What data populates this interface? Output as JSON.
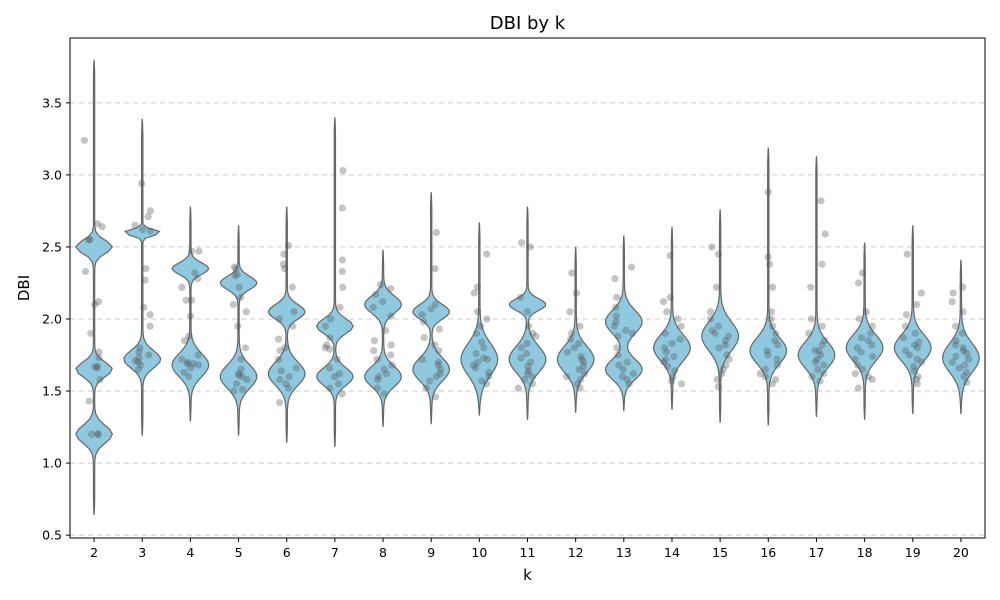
{
  "chart_data": {
    "type": "violin",
    "title": "DBI by k",
    "xlabel": "k",
    "ylabel": "DBI",
    "categories": [
      "2",
      "3",
      "4",
      "5",
      "6",
      "7",
      "8",
      "9",
      "10",
      "11",
      "12",
      "13",
      "14",
      "15",
      "16",
      "17",
      "18",
      "19",
      "20"
    ],
    "ylim": [
      0.48,
      3.95
    ],
    "yticks": [
      "0.5",
      "1.0",
      "1.5",
      "2.0",
      "2.5",
      "3.0",
      "3.5"
    ],
    "grid": "y-dashed",
    "colors": {
      "violin_fill": "#8ec9e0",
      "violin_edge": "#666666",
      "points": "#555555",
      "grid": "#cccccc"
    },
    "violins": [
      {
        "k": "2",
        "min": 0.64,
        "max": 3.8,
        "modes": [
          [
            1.2,
            0.06
          ],
          [
            1.65,
            0.05
          ],
          [
            2.5,
            0.045
          ]
        ]
      },
      {
        "k": "3",
        "min": 1.19,
        "max": 3.39,
        "modes": [
          [
            1.72,
            0.06
          ],
          [
            2.6,
            0.02
          ]
        ]
      },
      {
        "k": "4",
        "min": 1.29,
        "max": 2.78,
        "modes": [
          [
            1.68,
            0.08
          ],
          [
            2.35,
            0.04
          ]
        ]
      },
      {
        "k": "5",
        "min": 1.19,
        "max": 2.65,
        "modes": [
          [
            1.6,
            0.08
          ],
          [
            2.25,
            0.045
          ]
        ]
      },
      {
        "k": "6",
        "min": 1.14,
        "max": 2.78,
        "modes": [
          [
            1.62,
            0.08
          ],
          [
            2.05,
            0.05
          ]
        ]
      },
      {
        "k": "7",
        "min": 1.11,
        "max": 3.4,
        "modes": [
          [
            1.6,
            0.06
          ],
          [
            1.95,
            0.05
          ]
        ]
      },
      {
        "k": "8",
        "min": 1.25,
        "max": 2.48,
        "modes": [
          [
            1.6,
            0.07
          ],
          [
            2.1,
            0.06
          ]
        ]
      },
      {
        "k": "9",
        "min": 1.27,
        "max": 2.88,
        "modes": [
          [
            1.65,
            0.08
          ],
          [
            2.05,
            0.05
          ]
        ]
      },
      {
        "k": "10",
        "min": 1.33,
        "max": 2.67,
        "modes": [
          [
            1.72,
            0.11
          ]
        ]
      },
      {
        "k": "11",
        "min": 1.3,
        "max": 2.78,
        "modes": [
          [
            1.72,
            0.09
          ],
          [
            2.1,
            0.04
          ]
        ]
      },
      {
        "k": "12",
        "min": 1.35,
        "max": 2.5,
        "modes": [
          [
            1.72,
            0.09
          ]
        ]
      },
      {
        "k": "13",
        "min": 1.36,
        "max": 2.58,
        "modes": [
          [
            1.65,
            0.07
          ],
          [
            1.98,
            0.08
          ]
        ]
      },
      {
        "k": "14",
        "min": 1.37,
        "max": 2.64,
        "modes": [
          [
            1.8,
            0.09
          ]
        ]
      },
      {
        "k": "15",
        "min": 1.28,
        "max": 2.76,
        "modes": [
          [
            1.88,
            0.1
          ]
        ]
      },
      {
        "k": "16",
        "min": 1.26,
        "max": 3.19,
        "modes": [
          [
            1.78,
            0.09
          ]
        ]
      },
      {
        "k": "17",
        "min": 1.32,
        "max": 3.13,
        "modes": [
          [
            1.75,
            0.09
          ]
        ]
      },
      {
        "k": "18",
        "min": 1.3,
        "max": 2.53,
        "modes": [
          [
            1.8,
            0.09
          ]
        ]
      },
      {
        "k": "19",
        "min": 1.34,
        "max": 2.65,
        "modes": [
          [
            1.8,
            0.09
          ]
        ]
      },
      {
        "k": "20",
        "min": 1.34,
        "max": 2.41,
        "modes": [
          [
            1.73,
            0.1
          ]
        ]
      }
    ],
    "points": {
      "2": [
        3.24,
        2.64,
        2.55,
        2.55,
        2.12,
        2.1,
        1.9,
        1.77,
        1.73,
        1.67,
        1.67,
        1.66,
        1.58,
        1.43,
        1.2,
        1.2,
        1.2,
        2.33,
        2.66
      ],
      "3": [
        2.94,
        2.75,
        2.71,
        2.65,
        2.62,
        2.61,
        2.35,
        2.27,
        2.08,
        2.03,
        1.95,
        1.8,
        1.77,
        1.75,
        1.73,
        1.71,
        1.7,
        1.68,
        1.65
      ],
      "4": [
        2.47,
        2.47,
        2.32,
        2.28,
        2.22,
        2.13,
        2.13,
        2.02,
        1.88,
        1.85,
        1.75,
        1.72,
        1.7,
        1.69,
        1.69,
        1.68,
        1.66,
        1.63,
        1.6
      ],
      "5": [
        2.36,
        2.35,
        2.31,
        2.3,
        2.22,
        2.15,
        2.1,
        2.05,
        1.95,
        1.8,
        1.72,
        1.65,
        1.62,
        1.61,
        1.6,
        1.58,
        1.55,
        1.51,
        1.5
      ],
      "6": [
        2.51,
        2.45,
        2.38,
        2.35,
        2.22,
        2.05,
        2.0,
        1.95,
        1.86,
        1.8,
        1.78,
        1.72,
        1.66,
        1.64,
        1.6,
        1.58,
        1.55,
        1.52,
        1.42
      ],
      "7": [
        3.03,
        2.77,
        2.41,
        2.33,
        2.22,
        2.08,
        2.0,
        1.95,
        1.87,
        1.82,
        1.8,
        1.72,
        1.66,
        1.62,
        1.6,
        1.55,
        1.52,
        1.48,
        1.79
      ],
      "8": [
        2.24,
        2.21,
        2.17,
        2.12,
        2.08,
        2.02,
        1.92,
        1.82,
        1.78,
        1.75,
        1.72,
        1.68,
        1.65,
        1.62,
        1.6,
        1.58,
        1.52,
        1.48,
        1.85
      ],
      "9": [
        2.6,
        2.35,
        2.1,
        2.07,
        2.03,
        1.98,
        1.93,
        1.87,
        1.82,
        1.78,
        1.72,
        1.7,
        1.68,
        1.65,
        1.62,
        1.6,
        1.57,
        1.52,
        1.46
      ],
      "10": [
        2.45,
        2.22,
        2.18,
        2.05,
        2.0,
        1.95,
        1.9,
        1.84,
        1.8,
        1.76,
        1.73,
        1.7,
        1.68,
        1.66,
        1.63,
        1.6,
        1.57,
        1.55,
        1.72
      ],
      "11": [
        2.53,
        2.5,
        2.15,
        2.05,
        1.95,
        1.9,
        1.88,
        1.83,
        1.8,
        1.76,
        1.73,
        1.7,
        1.67,
        1.64,
        1.62,
        1.6,
        1.58,
        1.55,
        1.52
      ],
      "12": [
        2.32,
        2.18,
        2.05,
        1.95,
        1.9,
        1.86,
        1.83,
        1.8,
        1.77,
        1.74,
        1.72,
        1.7,
        1.67,
        1.65,
        1.62,
        1.6,
        1.58,
        1.55,
        1.52
      ],
      "13": [
        2.36,
        2.28,
        2.15,
        2.08,
        2.02,
        1.98,
        1.95,
        1.92,
        1.9,
        1.88,
        1.8,
        1.75,
        1.7,
        1.68,
        1.65,
        1.62,
        1.6,
        1.58,
        1.55
      ],
      "14": [
        2.44,
        2.15,
        2.12,
        2.05,
        2.0,
        1.95,
        1.9,
        1.86,
        1.83,
        1.8,
        1.77,
        1.74,
        1.72,
        1.7,
        1.67,
        1.64,
        1.6,
        1.57,
        1.55
      ],
      "15": [
        2.5,
        2.45,
        2.22,
        2.05,
        2.0,
        1.95,
        1.92,
        1.9,
        1.88,
        1.85,
        1.82,
        1.8,
        1.75,
        1.72,
        1.68,
        1.65,
        1.62,
        1.58,
        1.53
      ],
      "16": [
        2.88,
        2.43,
        2.38,
        2.22,
        2.05,
        2.0,
        1.95,
        1.9,
        1.85,
        1.82,
        1.78,
        1.75,
        1.72,
        1.68,
        1.65,
        1.62,
        1.6,
        1.58,
        1.55
      ],
      "17": [
        2.82,
        2.59,
        2.38,
        2.22,
        2.0,
        1.95,
        1.9,
        1.85,
        1.82,
        1.78,
        1.75,
        1.72,
        1.7,
        1.68,
        1.65,
        1.62,
        1.6,
        1.57,
        1.78
      ],
      "18": [
        2.32,
        2.25,
        2.05,
        2.0,
        1.95,
        1.9,
        1.87,
        1.85,
        1.82,
        1.8,
        1.77,
        1.74,
        1.72,
        1.68,
        1.65,
        1.62,
        1.6,
        1.58,
        1.52
      ],
      "19": [
        2.45,
        2.18,
        2.1,
        2.03,
        1.95,
        1.9,
        1.87,
        1.84,
        1.82,
        1.8,
        1.78,
        1.75,
        1.72,
        1.7,
        1.67,
        1.64,
        1.6,
        1.58,
        1.55
      ],
      "20": [
        2.22,
        2.18,
        2.12,
        2.05,
        1.95,
        1.9,
        1.85,
        1.82,
        1.8,
        1.78,
        1.76,
        1.74,
        1.72,
        1.7,
        1.68,
        1.66,
        1.63,
        1.6,
        1.56
      ]
    }
  }
}
